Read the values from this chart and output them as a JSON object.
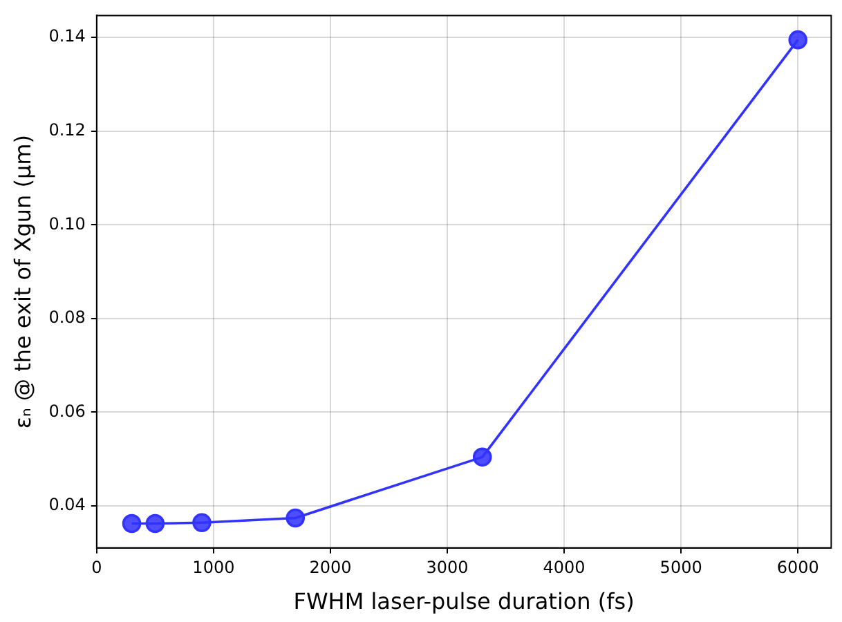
{
  "chart_data": {
    "type": "line",
    "xlabel": "FWHM laser-pulse duration (fs)",
    "ylabel": "εₙ @ the exit of Xgun (μm)",
    "x": [
      300,
      500,
      900,
      1700,
      3300,
      6000
    ],
    "series": [
      {
        "color": "#3333ff",
        "values": [
          0.0362,
          0.0362,
          0.0364,
          0.0374,
          0.0504,
          0.1395
        ]
      }
    ],
    "xlim": [
      0,
      6285
    ],
    "xticks": [
      0,
      1000,
      2000,
      3000,
      4000,
      5000,
      6000
    ],
    "ylim": [
      0.031,
      0.1447
    ],
    "yticks": [
      0.04,
      0.06,
      0.08,
      {
        "value": 0.1,
        "label": "0.10"
      },
      0.12,
      0.14
    ],
    "grid": true,
    "marker": "circle",
    "line_style": "solid",
    "legend": false
  }
}
